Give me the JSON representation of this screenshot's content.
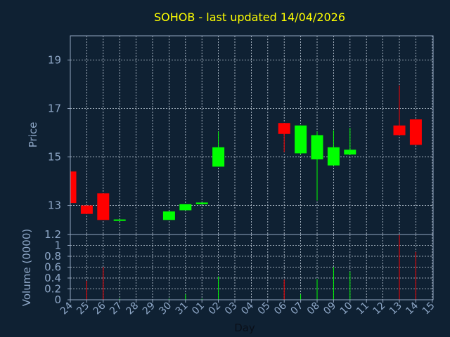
{
  "title": "SOHOB - last updated 14/04/2026",
  "colors": {
    "background": "#0f2133",
    "frame": "#93a6c0",
    "grid": "#c8d3e0",
    "title": "#ffff00",
    "axis_text": "#8fa8c8",
    "up": "#00ff00",
    "down": "#ff0000"
  },
  "chart_data": [
    {
      "type": "candlestick",
      "ylabel": "Price",
      "ylim": [
        11.8,
        20
      ],
      "y_ticks": [
        13,
        15,
        17,
        19
      ],
      "grid": true,
      "categories": [
        "24",
        "25",
        "26",
        "27",
        "28",
        "29",
        "30",
        "31",
        "01",
        "02",
        "03",
        "04",
        "05",
        "06",
        "07",
        "08",
        "09",
        "10",
        "11",
        "12",
        "13",
        "14",
        "15"
      ],
      "candles": [
        {
          "x": "24",
          "open": 14.4,
          "close": 13.1,
          "high": 14.4,
          "low": 13.1
        },
        {
          "x": "25",
          "open": 13.0,
          "close": 12.65,
          "high": 13.0,
          "low": 12.65
        },
        {
          "x": "26",
          "open": 13.5,
          "close": 12.4,
          "high": 13.5,
          "low": 12.4
        },
        {
          "x": "27",
          "open": 12.38,
          "close": 12.42,
          "high": 12.42,
          "low": 12.38
        },
        {
          "x": "30",
          "open": 12.4,
          "close": 12.75,
          "high": 12.75,
          "low": 12.4
        },
        {
          "x": "31",
          "open": 12.8,
          "close": 13.05,
          "high": 13.05,
          "low": 12.8
        },
        {
          "x": "01",
          "open": 13.05,
          "close": 13.12,
          "high": 13.12,
          "low": 13.05
        },
        {
          "x": "02",
          "open": 14.6,
          "close": 15.4,
          "high": 16.05,
          "low": 14.6
        },
        {
          "x": "06",
          "open": 16.4,
          "close": 15.95,
          "high": 16.4,
          "low": 15.2
        },
        {
          "x": "07",
          "open": 15.15,
          "close": 16.3,
          "high": 16.3,
          "low": 15.1
        },
        {
          "x": "08",
          "open": 14.9,
          "close": 15.9,
          "high": 16.05,
          "low": 13.2
        },
        {
          "x": "09",
          "open": 14.65,
          "close": 15.4,
          "high": 16.1,
          "low": 14.65
        },
        {
          "x": "10",
          "open": 15.1,
          "close": 15.3,
          "high": 16.2,
          "low": 15.1
        },
        {
          "x": "13",
          "open": 16.3,
          "close": 15.9,
          "high": 17.95,
          "low": 15.9
        },
        {
          "x": "14",
          "open": 16.55,
          "close": 15.5,
          "high": 16.55,
          "low": 15.5
        }
      ]
    },
    {
      "type": "bar",
      "ylabel": "Volume (0000)",
      "xlabel": "Day",
      "ylim": [
        0,
        1.2
      ],
      "y_ticks": [
        0,
        0.2,
        0.4,
        0.6,
        0.8,
        1,
        1.2
      ],
      "grid": true,
      "categories": [
        "24",
        "25",
        "26",
        "27",
        "28",
        "29",
        "30",
        "31",
        "01",
        "02",
        "03",
        "04",
        "05",
        "06",
        "07",
        "08",
        "09",
        "10",
        "11",
        "12",
        "13",
        "14",
        "15"
      ],
      "bars": [
        {
          "x": "25",
          "value": 0.35,
          "direction": "down"
        },
        {
          "x": "26",
          "value": 0.6,
          "direction": "down"
        },
        {
          "x": "27",
          "value": 0.02,
          "direction": "up"
        },
        {
          "x": "30",
          "value": 0.02,
          "direction": "up"
        },
        {
          "x": "31",
          "value": 0.1,
          "direction": "up"
        },
        {
          "x": "01",
          "value": 0.02,
          "direction": "up"
        },
        {
          "x": "02",
          "value": 0.43,
          "direction": "up"
        },
        {
          "x": "06",
          "value": 0.37,
          "direction": "down"
        },
        {
          "x": "07",
          "value": 0.1,
          "direction": "up"
        },
        {
          "x": "08",
          "value": 0.38,
          "direction": "up"
        },
        {
          "x": "09",
          "value": 0.6,
          "direction": "up"
        },
        {
          "x": "10",
          "value": 0.52,
          "direction": "up"
        },
        {
          "x": "13",
          "value": 1.2,
          "direction": "down"
        },
        {
          "x": "14",
          "value": 0.88,
          "direction": "down"
        }
      ]
    }
  ]
}
